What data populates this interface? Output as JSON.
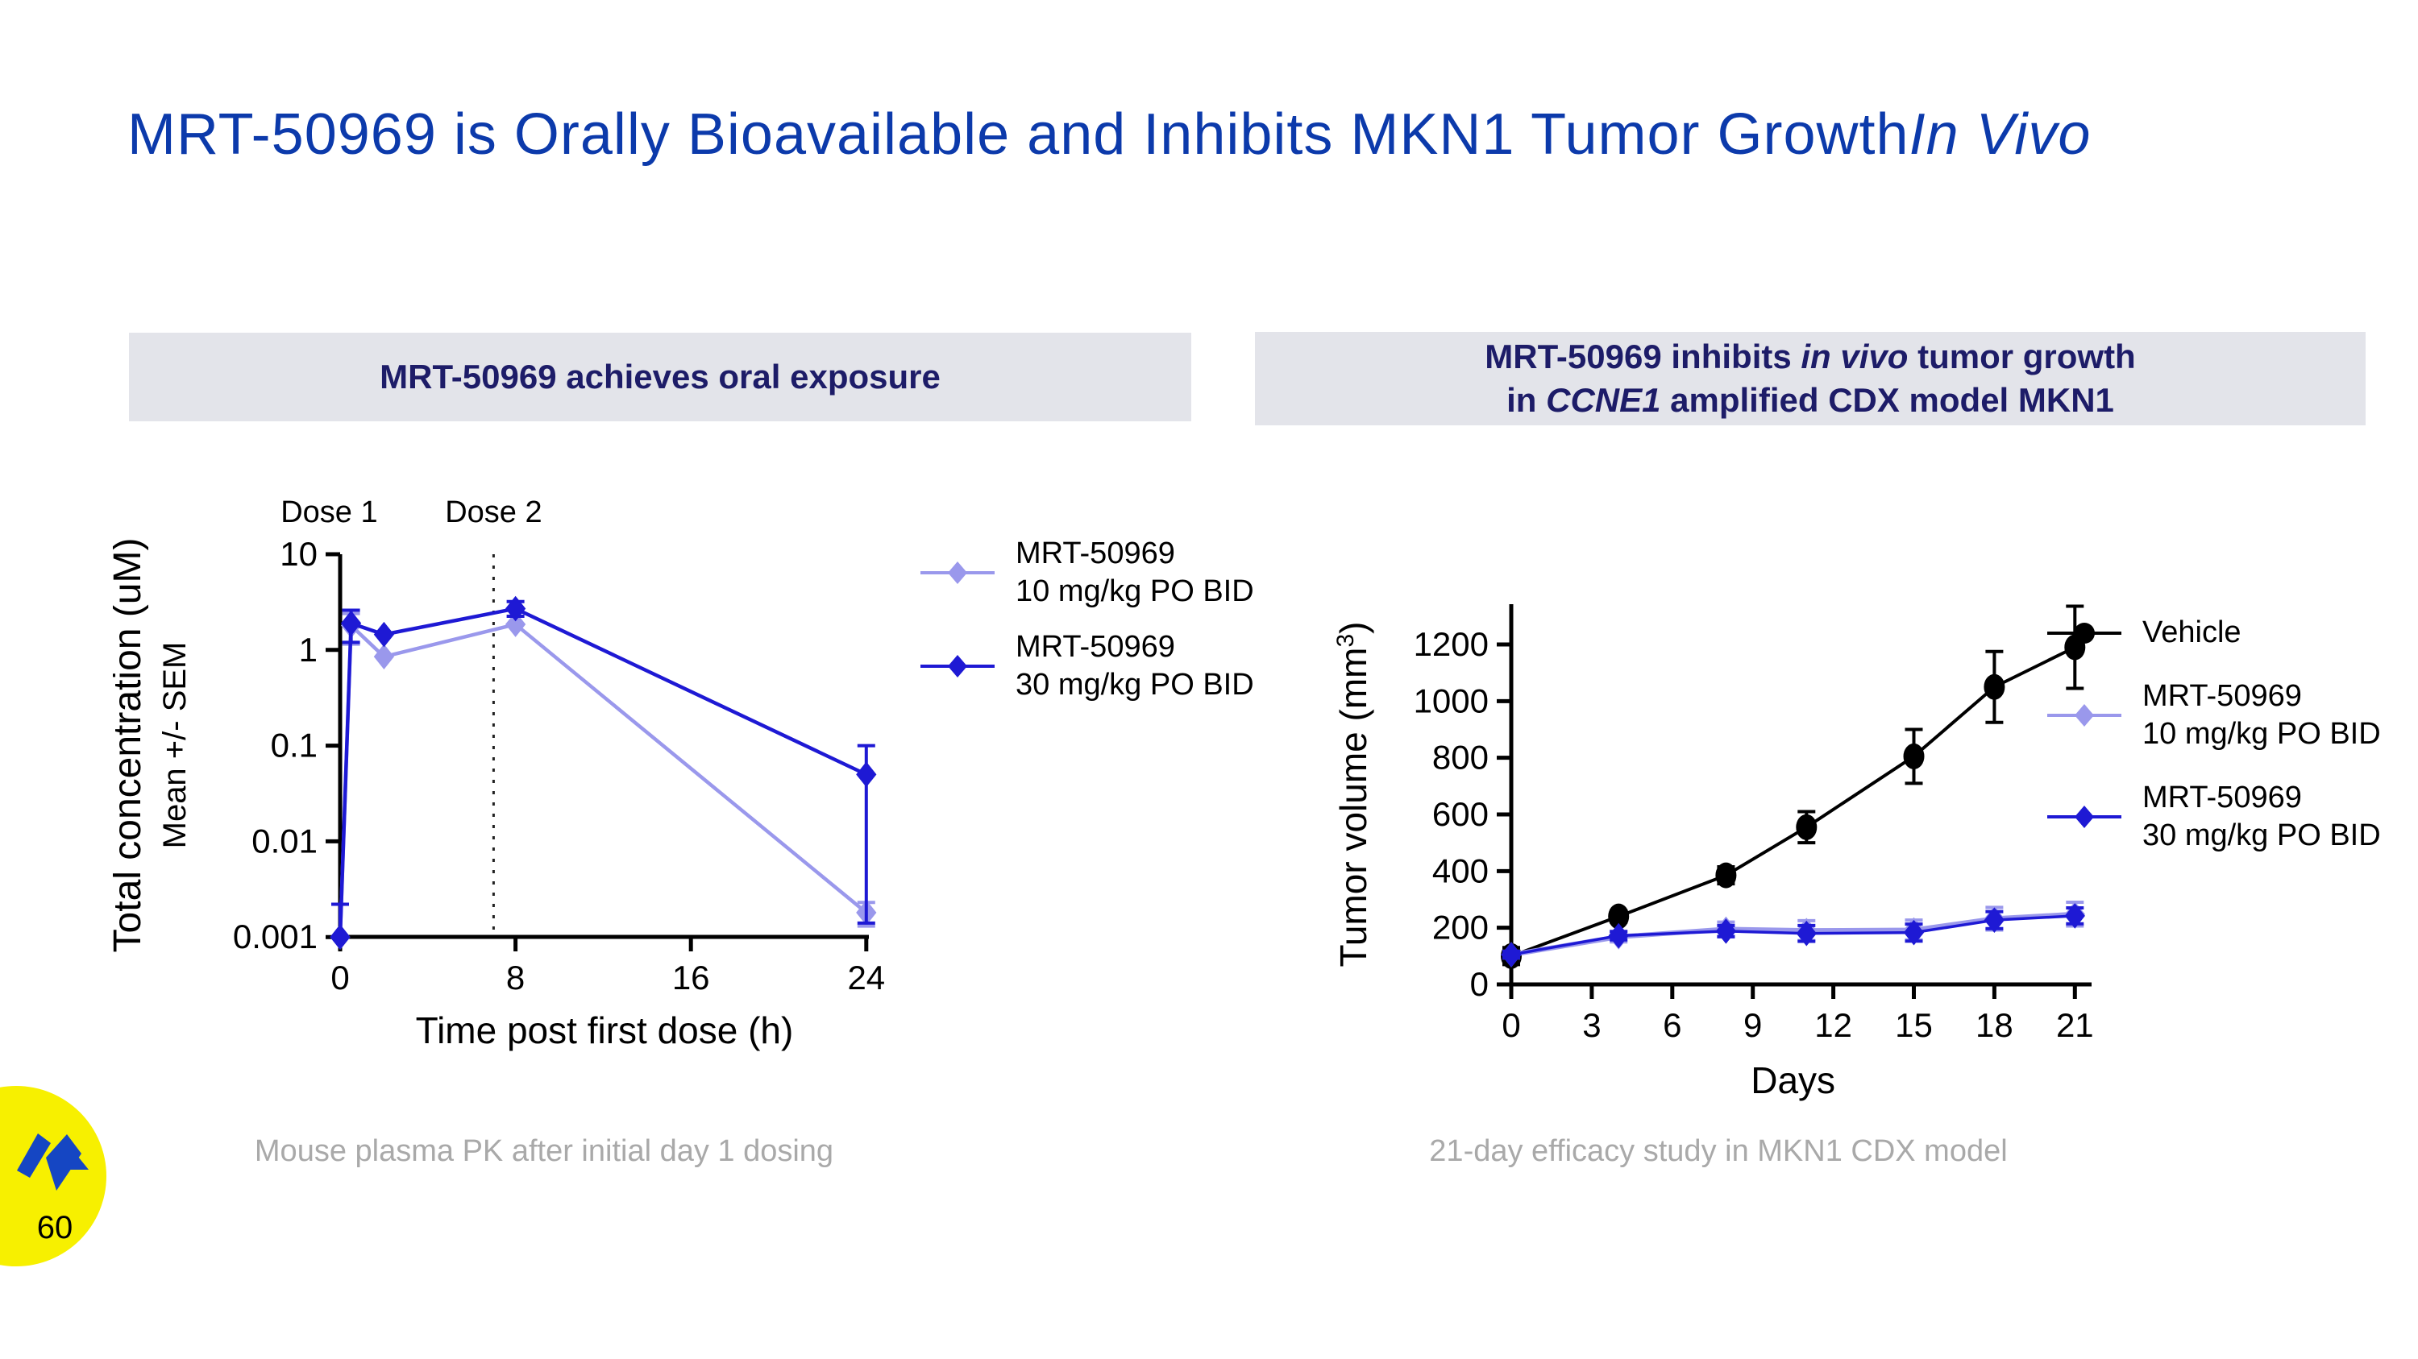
{
  "slide": {
    "title_main": "MRT-50969 is Orally Bioavailable and Inhibits MKN1 Tumor Growth",
    "title_italic": "In Vivo",
    "title_color": "#0c3aab",
    "page_number": "60",
    "logo_colors": {
      "circle": "#f7f000",
      "mark": "#1546c3",
      "page_number": "#16388f"
    }
  },
  "left_panel": {
    "header": "MRT-50969 achieves oral exposure",
    "caption": "Mouse plasma PK after initial day 1 dosing"
  },
  "right_panel": {
    "header_l1_a": "MRT-50969 inhibits ",
    "header_l1_b": "in vivo",
    "header_l1_c": " tumor growth",
    "header_l2_a": "in ",
    "header_l2_b": "CCNE1",
    "header_l2_c": " amplified CDX model MKN1",
    "caption": "21-day efficacy study in MKN1 CDX model"
  },
  "chart_data": [
    {
      "type": "line",
      "title": "MRT-50969 achieves oral exposure",
      "yscale": "log",
      "xlabel": "Time post first dose (h)",
      "ylabel": "Total concentration (uM)",
      "ylabel_sub": "Mean +/- SEM",
      "xlim": [
        0,
        24
      ],
      "ylim": [
        0.001,
        10
      ],
      "x_ticks": [
        0,
        8,
        16,
        24
      ],
      "y_ticks": [
        10,
        1,
        0.1,
        0.01,
        0.001
      ],
      "y_tick_labels": [
        "10",
        "1",
        "0.1",
        "0.01",
        "0.001"
      ],
      "grid": false,
      "legend_position": "right",
      "dose_line_x": 7,
      "annotations": [
        {
          "text": "Dose 1",
          "x": -0.5
        },
        {
          "text": "Dose 2",
          "x": 7
        }
      ],
      "series": [
        {
          "name": "MRT-50969 10 mg/kg PO BID",
          "color": "#9a98ec",
          "marker": "diamond",
          "x": [
            0,
            0.5,
            2,
            8,
            24
          ],
          "y": [
            0.001,
            1.8,
            0.85,
            1.85,
            0.0018
          ],
          "err_lo": [
            null,
            0.65,
            null,
            null,
            0.0005
          ],
          "err_hi": [
            null,
            0.6,
            null,
            null,
            0.0005
          ]
        },
        {
          "name": "MRT-50969 30 mg/kg PO BID",
          "color": "#1e19d4",
          "marker": "diamond",
          "x": [
            0,
            0.5,
            2,
            8,
            24
          ],
          "y": [
            0.001,
            1.9,
            1.45,
            2.7,
            0.05
          ],
          "err_lo": [
            null,
            0.7,
            null,
            0.45,
            0.0486
          ],
          "err_hi": [
            0.0012,
            0.7,
            null,
            0.5,
            0.05
          ]
        }
      ]
    },
    {
      "type": "line",
      "title": "MRT-50969 inhibits in vivo tumor growth in CCNE1 amplified CDX model MKN1",
      "yscale": "linear",
      "xlabel": "Days",
      "ylabel_pre": "Tumor volume (mm",
      "ylabel_sup": "3",
      "ylabel_post": ")",
      "xlim": [
        0,
        21
      ],
      "ylim": [
        0,
        1300
      ],
      "x_ticks": [
        0,
        3,
        6,
        9,
        12,
        15,
        18,
        21
      ],
      "y_ticks": [
        0,
        200,
        400,
        600,
        800,
        1000,
        1200
      ],
      "y_tick_labels": [
        "0",
        "200",
        "400",
        "600",
        "800",
        "1000",
        "1200"
      ],
      "grid": false,
      "legend_position": "right",
      "series": [
        {
          "name": "Vehicle",
          "color": "#000000",
          "marker": "circle",
          "x": [
            0,
            4,
            8,
            11,
            15,
            18,
            21
          ],
          "y": [
            100,
            240,
            385,
            555,
            805,
            1050,
            1190
          ],
          "err": [
            30,
            20,
            30,
            55,
            95,
            125,
            145
          ]
        },
        {
          "name": "MRT-50969 10 mg/kg PO BID",
          "color": "#9a98ec",
          "marker": "diamond",
          "x": [
            0,
            4,
            8,
            11,
            15,
            18,
            21
          ],
          "y": [
            105,
            168,
            195,
            190,
            192,
            232,
            248
          ],
          "err": [
            12,
            18,
            25,
            35,
            35,
            40,
            42
          ]
        },
        {
          "name": "MRT-50969 30 mg/kg PO BID",
          "color": "#1e19d4",
          "marker": "diamond",
          "x": [
            0,
            4,
            8,
            11,
            15,
            18,
            21
          ],
          "y": [
            105,
            172,
            188,
            180,
            183,
            227,
            242
          ],
          "err": [
            12,
            15,
            20,
            28,
            30,
            30,
            28
          ]
        }
      ]
    }
  ],
  "legends": {
    "pk": [
      {
        "lines": [
          "MRT-50969",
          "10 mg/kg PO BID"
        ],
        "color": "#9a98ec",
        "marker": "diamond"
      },
      {
        "lines": [
          "MRT-50969",
          "30 mg/kg PO BID"
        ],
        "color": "#1e19d4",
        "marker": "diamond"
      }
    ],
    "efficacy": [
      {
        "lines": [
          "Vehicle"
        ],
        "color": "#000000",
        "marker": "circle"
      },
      {
        "lines": [
          "MRT-50969",
          "10 mg/kg PO BID"
        ],
        "color": "#9a98ec",
        "marker": "diamond"
      },
      {
        "lines": [
          "MRT-50969",
          "30 mg/kg PO BID"
        ],
        "color": "#1e19d4",
        "marker": "diamond"
      }
    ]
  }
}
